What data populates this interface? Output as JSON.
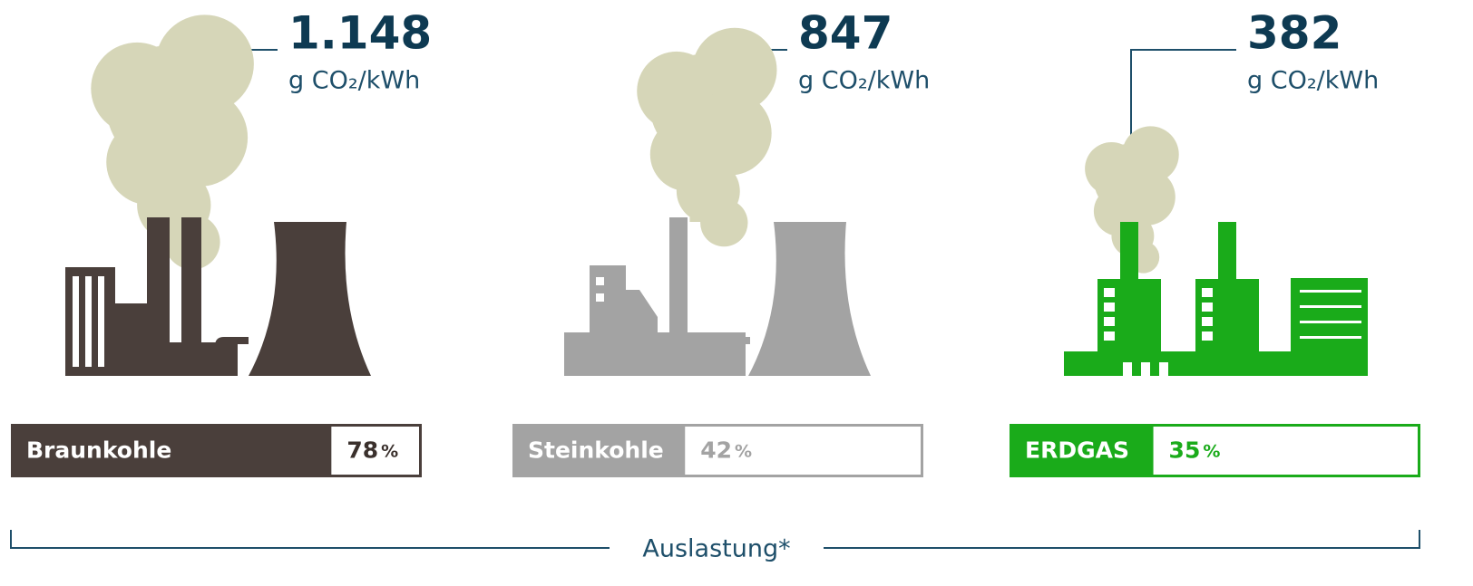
{
  "chart_data": {
    "type": "bar",
    "categories": [
      "Braunkohle",
      "Steinkohle",
      "ERDGAS"
    ],
    "values": [
      78,
      42,
      35
    ],
    "unit": "%",
    "xlim": [
      0,
      100
    ],
    "colors": [
      "#4a3f3b",
      "#a3a3a3",
      "#1aab1a"
    ],
    "emissions": [
      1148,
      847,
      382
    ],
    "emission_labels": [
      "1.148",
      "847",
      "382"
    ],
    "emission_unit": "g CO₂/kWh",
    "xlabel": "Auslastung*"
  }
}
